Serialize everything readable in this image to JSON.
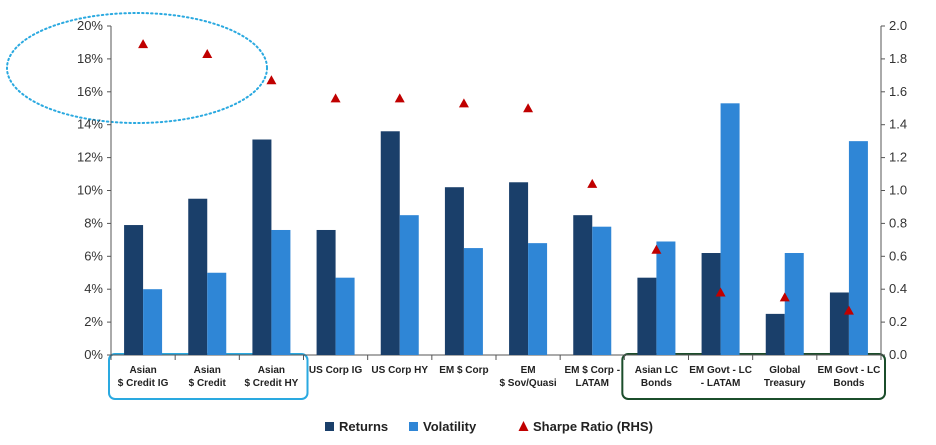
{
  "chart_data": {
    "type": "bar",
    "title": "",
    "xlabel": "",
    "ylabel": "",
    "categories": [
      [
        "Asian",
        "$ Credit IG"
      ],
      [
        "Asian",
        "$ Credit"
      ],
      [
        "Asian",
        "$ Credit HY"
      ],
      [
        "US Corp IG"
      ],
      [
        "US Corp HY"
      ],
      [
        "EM $ Corp"
      ],
      [
        "EM",
        "$ Sov/Quasi"
      ],
      [
        "EM $ Corp -",
        "LATAM"
      ],
      [
        "Asian LC",
        "Bonds"
      ],
      [
        "EM Govt - LC",
        "- LATAM"
      ],
      [
        "Global",
        "Treasury"
      ],
      [
        "EM Govt - LC",
        "Bonds"
      ]
    ],
    "series": [
      {
        "name": "Returns",
        "axis": "left",
        "kind": "bar",
        "color": "#1a3f6a",
        "values": [
          7.9,
          9.5,
          13.1,
          7.6,
          13.6,
          10.2,
          10.5,
          8.5,
          4.7,
          6.2,
          2.5,
          3.8
        ]
      },
      {
        "name": "Volatility",
        "axis": "left",
        "kind": "bar",
        "color": "#2f86d6",
        "values": [
          4.0,
          5.0,
          7.6,
          4.7,
          8.5,
          6.5,
          6.8,
          7.8,
          6.9,
          15.3,
          6.2,
          13.0
        ]
      },
      {
        "name": "Sharpe Ratio (RHS)",
        "axis": "right",
        "kind": "marker",
        "color": "#c00000",
        "values": [
          1.89,
          1.83,
          1.67,
          1.56,
          1.56,
          1.53,
          1.5,
          1.04,
          0.64,
          0.38,
          0.35,
          0.27
        ]
      }
    ],
    "y_left": {
      "min": 0,
      "max": 20,
      "step": 2,
      "format": "percent"
    },
    "y_right": {
      "min": 0,
      "max": 2.0,
      "step": 0.2,
      "format": "decimal1"
    },
    "legend_position": "bottom",
    "grid": false,
    "annotations": [
      {
        "type": "dotted-ellipse",
        "color": "#2aa9e0",
        "around": "top-left Sharpe markers"
      },
      {
        "type": "rounded-box",
        "color": "#2aa9e0",
        "categories": [
          0,
          1,
          2
        ]
      },
      {
        "type": "rounded-box",
        "color": "#1b4d2b",
        "categories": [
          8,
          9,
          10,
          11
        ]
      }
    ]
  }
}
